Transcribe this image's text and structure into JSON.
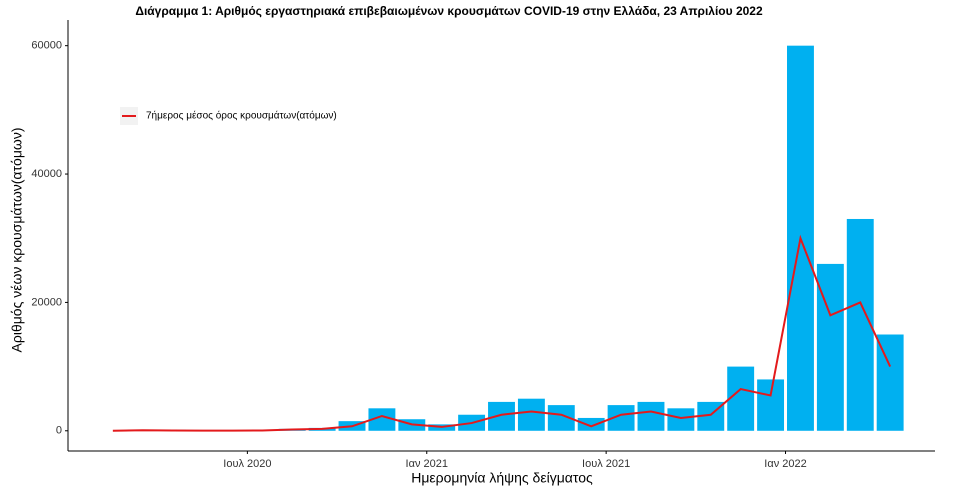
{
  "chart_data": {
    "type": "bar-line",
    "title": "Διάγραμμα 1: Αριθμός εργαστηριακά επιβεβαιωμένων κρουσμάτων COVID-19 στην Ελλάδα, 23 Απριλίου 2022",
    "x_label": "Ημερομηνία λήψης δείγματος",
    "y_label": "Αριθμός νέων κρουσμάτων(ατόμων)",
    "x": [
      "2020-02",
      "2020-03",
      "2020-04",
      "2020-05",
      "2020-06",
      "2020-07",
      "2020-08",
      "2020-09",
      "2020-10",
      "2020-11",
      "2020-12",
      "2021-01",
      "2021-02",
      "2021-03",
      "2021-04",
      "2021-05",
      "2021-06",
      "2021-07",
      "2021-08",
      "2021-09",
      "2021-10",
      "2021-11",
      "2021-12",
      "2022-01",
      "2022-02",
      "2022-03",
      "2022-04"
    ],
    "series": [
      {
        "type": "bar",
        "color": "#00b0f0",
        "values": [
          0,
          100,
          150,
          50,
          50,
          100,
          300,
          450,
          1500,
          3500,
          1800,
          1000,
          2500,
          4500,
          5000,
          4000,
          2000,
          4000,
          4500,
          3500,
          4500,
          10000,
          8000,
          60000,
          26000,
          33000,
          15000
        ]
      },
      {
        "type": "line",
        "name": "7ήμερος μέσος όρος κρουσμάτων(ατόμων)",
        "color": "#e31a1c",
        "values": [
          0,
          80,
          50,
          20,
          20,
          40,
          200,
          300,
          700,
          2300,
          1000,
          600,
          1200,
          2500,
          3000,
          2500,
          700,
          2500,
          3000,
          2000,
          2500,
          6500,
          5500,
          30000,
          18000,
          20000,
          10000
        ]
      }
    ],
    "xlim": [
      "2020-01",
      "2022-06"
    ],
    "xticks": [
      {
        "value": "2020-07",
        "label": "Ιουλ 2020"
      },
      {
        "value": "2021-01",
        "label": "Ιαν 2021"
      },
      {
        "value": "2021-07",
        "label": "Ιουλ 2021"
      },
      {
        "value": "2022-01",
        "label": "Ιαν 2022"
      }
    ],
    "ylim": [
      -3150,
      64000
    ],
    "yticks": [
      0,
      20000,
      40000,
      60000
    ],
    "grid": false,
    "legend": "top-left"
  }
}
